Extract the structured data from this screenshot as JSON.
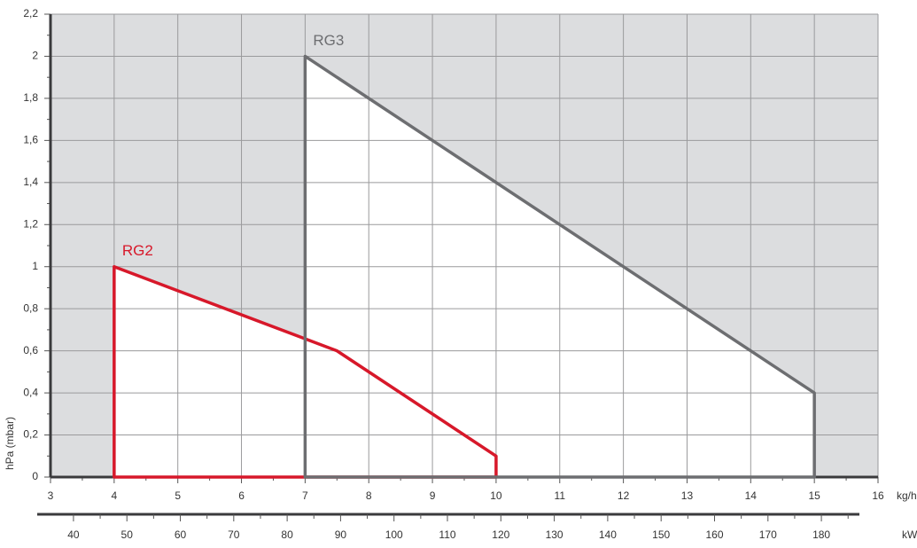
{
  "chart_data": {
    "type": "area",
    "xlabel": "kg/h",
    "ylabel": "hPa (mbar)",
    "x2label": "kW",
    "xlim": [
      3,
      16
    ],
    "xticks": [
      3,
      4,
      5,
      6,
      7,
      8,
      9,
      10,
      11,
      12,
      13,
      14,
      15,
      16
    ],
    "ylim": [
      0,
      2.2
    ],
    "yticks": [
      0,
      {
        "value": 0.2,
        "label": "0,2"
      },
      {
        "value": 0.4,
        "label": "0,4"
      },
      {
        "value": 0.6,
        "label": "0,6"
      },
      {
        "value": 0.8,
        "label": "0,8"
      },
      1,
      {
        "value": 1.2,
        "label": "1,2"
      },
      {
        "value": 1.4,
        "label": "1,4"
      },
      {
        "value": 1.6,
        "label": "1,6"
      },
      {
        "value": 1.8,
        "label": "1,8"
      },
      2,
      {
        "value": 2.2,
        "label": "2,2"
      }
    ],
    "x2lim": [
      35.7,
      190.6
    ],
    "x2ticks": [
      40,
      50,
      60,
      70,
      80,
      90,
      100,
      110,
      120,
      130,
      140,
      150,
      160,
      170,
      180
    ],
    "grid": true,
    "background": "#dcdddf",
    "series": [
      {
        "name": "RG2",
        "color": "#d7182a",
        "x": [
          4,
          4,
          7.5,
          10,
          10
        ],
        "values": [
          0,
          1,
          0.6,
          0.1,
          0
        ]
      },
      {
        "name": "RG3",
        "color": "#6d6e71",
        "x": [
          7,
          7,
          15,
          15
        ],
        "values": [
          0,
          2,
          0.4,
          0
        ]
      }
    ]
  }
}
